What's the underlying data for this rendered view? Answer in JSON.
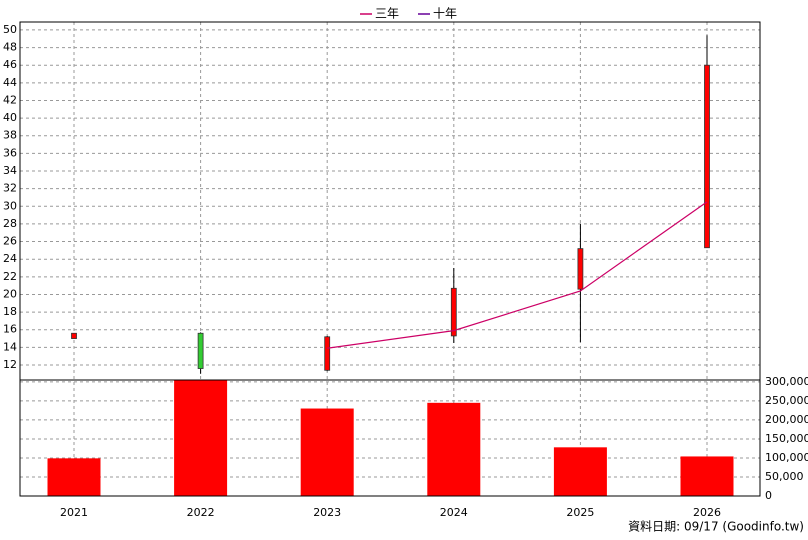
{
  "chart_data": {
    "type": "candlestick",
    "categories": [
      "2021",
      "2022",
      "2023",
      "2024",
      "2025",
      "2026"
    ],
    "open": [
      15.0,
      15.6,
      11.4,
      15.3,
      20.6,
      25.3
    ],
    "high": [
      15.6,
      15.7,
      15.3,
      23.0,
      28.0,
      49.4
    ],
    "low": [
      15.0,
      11.0,
      11.3,
      14.5,
      14.6,
      25.3
    ],
    "close": [
      15.6,
      11.6,
      15.2,
      20.7,
      25.2,
      46.0
    ],
    "up_color": "#ff0000",
    "down_color": "#33cc33",
    "ylim": [
      10.3,
      50.9
    ],
    "yticks": [
      12,
      14,
      16,
      18,
      20,
      22,
      24,
      26,
      28,
      30,
      32,
      34,
      36,
      38,
      40,
      42,
      44,
      46,
      48,
      50
    ],
    "grid": true,
    "series": [
      {
        "name": "三年",
        "color": "#cc0066",
        "values": [
          null,
          null,
          13.9,
          15.9,
          20.4,
          30.5
        ]
      },
      {
        "name": "十年",
        "color": "#660099",
        "values": [
          null,
          null,
          null,
          null,
          null,
          null
        ]
      }
    ],
    "volume": {
      "values": [
        99000,
        305000,
        230000,
        245000,
        128000,
        104000
      ],
      "color": "#ff0000",
      "ylim": [
        0,
        305000
      ],
      "yticks": [
        0,
        {
          "value": 50000,
          "label": "50,000"
        },
        {
          "value": 100000,
          "label": "100,000"
        },
        {
          "value": 150000,
          "label": "150,000"
        },
        {
          "value": 200000,
          "label": "200,000"
        },
        {
          "value": 250000,
          "label": "250,000"
        },
        {
          "value": 300000,
          "label": "300,000"
        }
      ]
    },
    "footer": "資料日期: 09/17  (Goodinfo.tw)"
  }
}
